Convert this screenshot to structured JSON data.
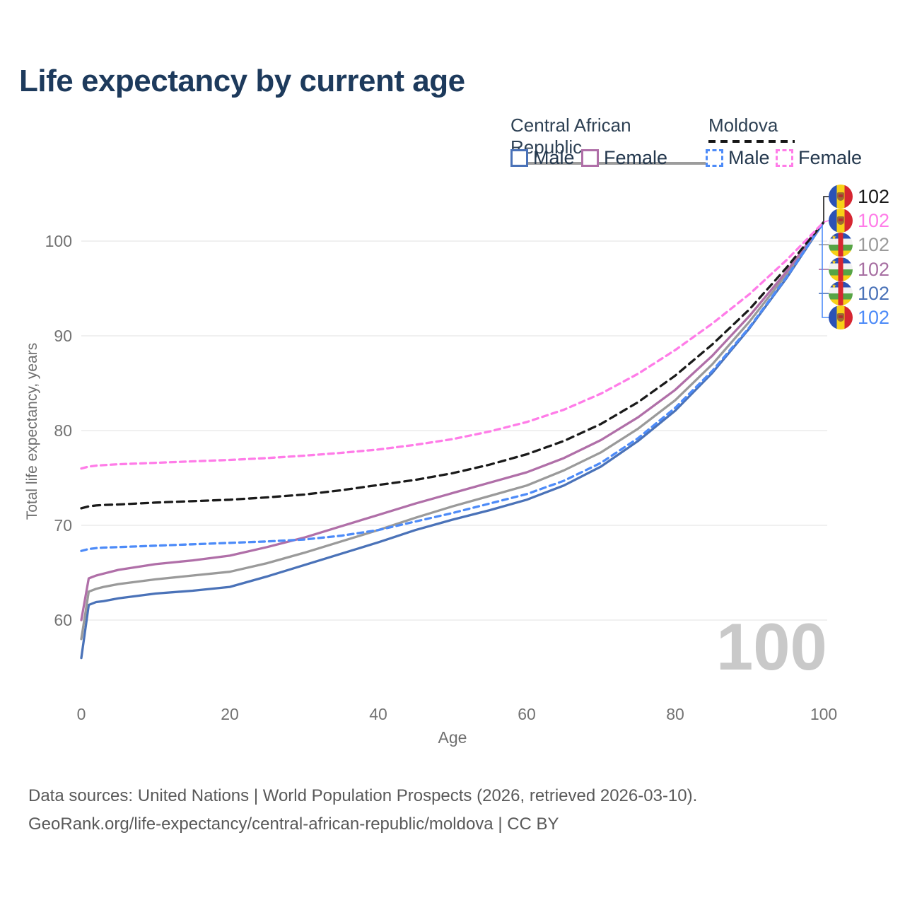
{
  "title": "Life expectancy by current age",
  "legend": {
    "groups": [
      {
        "label": "Central African Republic",
        "style": "solid",
        "color": "#9c9c9c"
      },
      {
        "label": "Moldova",
        "style": "dashed",
        "color": "#161616"
      }
    ],
    "items": [
      {
        "label": "Male",
        "color": "#4a72b8",
        "dashed": false
      },
      {
        "label": "Female",
        "color": "#b06fa8",
        "dashed": false
      },
      {
        "label": "Male",
        "color": "#4d8bf8",
        "dashed": true
      },
      {
        "label": "Female",
        "color": "#ff7ce8",
        "dashed": true
      }
    ]
  },
  "chart_data": {
    "type": "line",
    "title": "Life expectancy by current age",
    "xlabel": "Age",
    "ylabel": "Total life expectancy, years",
    "xlim": [
      0,
      100
    ],
    "ylim": [
      55,
      104
    ],
    "xticks": [
      0,
      20,
      40,
      60,
      80,
      100
    ],
    "yticks": [
      60,
      70,
      80,
      90,
      100
    ],
    "grid": "horizontal",
    "legend_position": "top-right",
    "age_counter": "100",
    "x": [
      0,
      1,
      2,
      3,
      5,
      10,
      15,
      20,
      25,
      30,
      35,
      40,
      45,
      50,
      55,
      60,
      65,
      70,
      75,
      80,
      85,
      90,
      95,
      100
    ],
    "series": [
      {
        "name": "Central African Republic Male",
        "country": "Central African Republic",
        "sex": "male",
        "color": "#4a72b8",
        "dash": "solid",
        "values": [
          56.0,
          61.6,
          61.9,
          62.0,
          62.3,
          62.8,
          63.1,
          63.5,
          64.6,
          65.8,
          67.0,
          68.2,
          69.5,
          70.6,
          71.6,
          72.7,
          74.2,
          76.2,
          78.9,
          82.1,
          86.1,
          90.8,
          96.1,
          102
        ]
      },
      {
        "name": "Central African Republic Total",
        "country": "Central African Republic",
        "sex": "total",
        "color": "#9a9a9a",
        "dash": "solid",
        "values": [
          58.0,
          63.0,
          63.3,
          63.5,
          63.8,
          64.3,
          64.7,
          65.1,
          66.0,
          67.1,
          68.3,
          69.5,
          70.8,
          72.0,
          73.1,
          74.2,
          75.8,
          77.7,
          80.2,
          83.2,
          87.0,
          91.5,
          96.5,
          102
        ]
      },
      {
        "name": "Central African Republic Female",
        "country": "Central African Republic",
        "sex": "female",
        "color": "#b06fa8",
        "dash": "solid",
        "values": [
          60.0,
          64.4,
          64.7,
          64.9,
          65.3,
          65.9,
          66.3,
          66.8,
          67.7,
          68.7,
          69.9,
          71.1,
          72.3,
          73.4,
          74.5,
          75.6,
          77.1,
          79.0,
          81.4,
          84.3,
          87.9,
          92.1,
          96.8,
          102
        ]
      },
      {
        "name": "Moldova Male",
        "country": "Moldova",
        "sex": "male",
        "color": "#4d8bf8",
        "dash": "dashed",
        "values": [
          67.3,
          67.5,
          67.6,
          67.65,
          67.7,
          67.85,
          68.0,
          68.15,
          68.3,
          68.5,
          68.9,
          69.5,
          70.4,
          71.3,
          72.3,
          73.3,
          74.7,
          76.6,
          79.2,
          82.4,
          86.3,
          90.9,
          96.2,
          102
        ]
      },
      {
        "name": "Moldova Total",
        "country": "Moldova",
        "sex": "total",
        "color": "#1a1a1a",
        "dash": "dashed",
        "values": [
          71.8,
          72.0,
          72.1,
          72.15,
          72.2,
          72.4,
          72.55,
          72.7,
          72.95,
          73.25,
          73.7,
          74.25,
          74.8,
          75.5,
          76.4,
          77.5,
          78.9,
          80.7,
          83.0,
          85.8,
          89.1,
          92.8,
          97.2,
          102
        ]
      },
      {
        "name": "Moldova Female",
        "country": "Moldova",
        "sex": "female",
        "color": "#ff7ce8",
        "dash": "dashed",
        "values": [
          76.0,
          76.2,
          76.3,
          76.35,
          76.45,
          76.6,
          76.75,
          76.9,
          77.1,
          77.35,
          77.65,
          78.0,
          78.5,
          79.1,
          79.9,
          80.9,
          82.2,
          83.9,
          86.0,
          88.5,
          91.3,
          94.4,
          98.0,
          102
        ]
      }
    ],
    "endpoints": [
      {
        "series": "Moldova Total",
        "flag": "md",
        "label": "102",
        "color": "#1a1a1a"
      },
      {
        "series": "Moldova Female",
        "flag": "md",
        "label": "102",
        "color": "#ff7ce8"
      },
      {
        "series": "Central African Republic Total",
        "flag": "cf",
        "label": "102",
        "color": "#9a9a9a"
      },
      {
        "series": "Central African Republic Female",
        "flag": "cf",
        "label": "102",
        "color": "#a76fa2"
      },
      {
        "series": "Central African Republic Male",
        "flag": "cf",
        "label": "102",
        "color": "#4a72b8"
      },
      {
        "series": "Moldova Male",
        "flag": "md",
        "label": "102",
        "color": "#4d8bf8"
      }
    ]
  },
  "footer": {
    "line1": "Data sources: United Nations | World Population Prospects (2026, retrieved 2026-03-10).",
    "line2": "GeoRank.org/life-expectancy/central-african-republic/moldova | CC BY"
  }
}
